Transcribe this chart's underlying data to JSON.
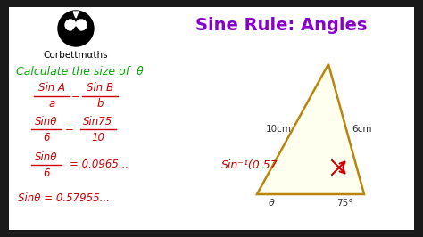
{
  "title": "Sine Rule: Angles",
  "title_color": "#8800cc",
  "bg_outer": "#1a1a1a",
  "bg_inner": "#ffffff",
  "calculate_text": "Calculate the size of  θ",
  "calculate_color": "#00aa00",
  "red": "#cc0000",
  "triangle_fill": "#fffff0",
  "triangle_edge": "#b8860b",
  "corbett_text": "Corbettmαths",
  "side_10cm": "10cm",
  "side_6cm": "6cm",
  "angle_75": "75°",
  "angle_theta": "θ",
  "inv_text": "Sin⁻¹(0.57",
  "formula4_text": "Sinθ = 0.57955...",
  "formula3_rhs": "= 0.0965...",
  "eq_sign": "=",
  "f1_num1": "Sin A",
  "f1_den1": "a",
  "f1_num2": "Sin B",
  "f1_den2": "b",
  "f2_num1": "Sinθ",
  "f2_den1": "6",
  "f2_num2": "Sin75",
  "f2_den2": "10",
  "f3_num": "Sinθ",
  "f3_den": "6"
}
